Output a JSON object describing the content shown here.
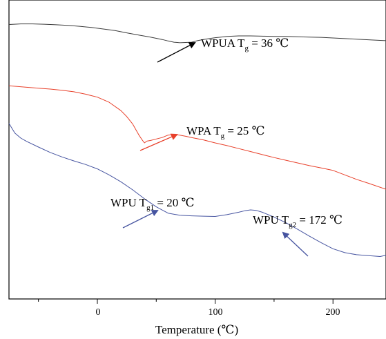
{
  "chart_data": {
    "type": "line",
    "title": "",
    "xlabel": "Temperature (℃)",
    "ylabel": "",
    "xlim": [
      -75,
      245
    ],
    "ylim": [
      0,
      100
    ],
    "xticks": [
      0,
      100,
      200
    ],
    "xtick_labels": [
      "0",
      "100",
      "200"
    ],
    "grid": false,
    "series": [
      {
        "name": "WPUA",
        "color": "#3a3a3a",
        "x": [
          -75,
          -65,
          -55,
          -45,
          -35,
          -25,
          -15,
          -5,
          5,
          15,
          25,
          35,
          45,
          55,
          60,
          65,
          70,
          75,
          80,
          85,
          90,
          95,
          100,
          105,
          110,
          115,
          120,
          130,
          140,
          150,
          160,
          170,
          180,
          190,
          200,
          210,
          220,
          230,
          240,
          245
        ],
        "y": [
          91.8,
          92.0,
          92.0,
          91.9,
          91.7,
          91.5,
          91.2,
          90.8,
          90.3,
          89.8,
          89.0,
          88.3,
          87.6,
          86.8,
          86.3,
          85.9,
          85.7,
          85.8,
          85.9,
          86.4,
          86.8,
          87.1,
          87.4,
          87.6,
          87.8,
          87.9,
          88.0,
          88.0,
          87.9,
          87.8,
          87.8,
          87.7,
          87.6,
          87.5,
          87.3,
          87.1,
          86.9,
          86.7,
          86.5,
          86.4
        ]
      },
      {
        "name": "WPA",
        "color": "#e8402a",
        "x": [
          -75,
          -60,
          -50,
          -40,
          -30,
          -20,
          -10,
          0,
          10,
          20,
          25,
          30,
          35,
          38,
          40,
          42,
          45,
          50,
          55,
          60,
          65,
          70,
          75,
          80,
          90,
          100,
          110,
          120,
          130,
          140,
          150,
          160,
          170,
          180,
          190,
          200,
          210,
          220,
          230,
          245
        ],
        "y": [
          71.3,
          70.8,
          70.5,
          70.2,
          69.8,
          69.3,
          68.5,
          67.5,
          65.8,
          63.0,
          61.0,
          58.5,
          55.0,
          53.2,
          52.2,
          52.8,
          53.0,
          53.5,
          54.0,
          54.8,
          55.0,
          54.8,
          54.4,
          54.0,
          53.2,
          52.2,
          51.3,
          50.3,
          49.3,
          48.3,
          47.3,
          46.4,
          45.5,
          44.6,
          43.8,
          43.0,
          41.5,
          40.0,
          38.7,
          36.7
        ]
      },
      {
        "name": "WPU",
        "color": "#4654a0",
        "x": [
          -75,
          -70,
          -65,
          -60,
          -50,
          -40,
          -30,
          -20,
          -10,
          0,
          10,
          20,
          30,
          40,
          50,
          60,
          70,
          80,
          90,
          100,
          110,
          120,
          125,
          130,
          135,
          140,
          150,
          160,
          170,
          180,
          190,
          200,
          210,
          220,
          230,
          240,
          245
        ],
        "y": [
          58.7,
          55.5,
          53.8,
          52.7,
          50.8,
          49.0,
          47.5,
          46.2,
          45.0,
          43.5,
          41.5,
          39.2,
          36.5,
          33.5,
          30.8,
          28.7,
          28.0,
          27.8,
          27.7,
          27.6,
          28.2,
          29.0,
          29.5,
          29.8,
          29.6,
          29.0,
          27.4,
          25.5,
          23.3,
          21.0,
          18.8,
          16.8,
          15.5,
          14.8,
          14.5,
          14.2,
          14.6
        ]
      }
    ],
    "annotations": [
      {
        "main": "WPUA T",
        "sub": "g",
        "rest": " = 36 ℃",
        "color": "#000000",
        "arrow_color": "#000000"
      },
      {
        "main": "WPA T",
        "sub": "g",
        "rest": " = 25 ℃",
        "color": "#e8402a",
        "arrow_color": "#e8402a"
      },
      {
        "main": "WPU T",
        "sub": "g1",
        "rest": " = 20 ℃",
        "color": "#2c3c96",
        "arrow_color": "#4654a0"
      },
      {
        "main": "WPU T",
        "sub": "g2",
        "rest": " = 172 ℃",
        "color": "#2c3c96",
        "arrow_color": "#4654a0"
      }
    ]
  }
}
